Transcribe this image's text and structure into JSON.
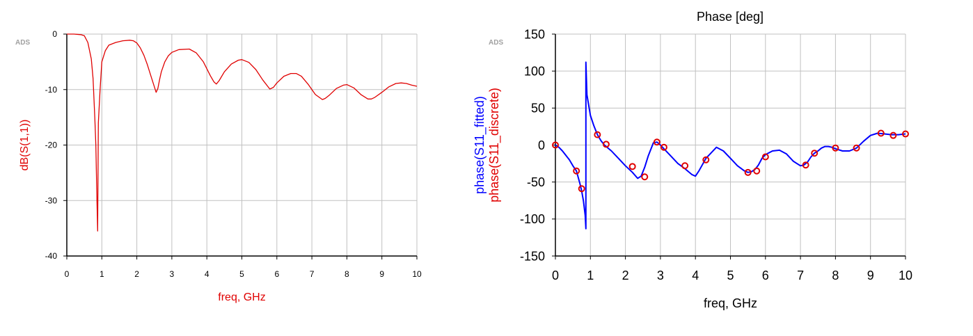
{
  "chart_data": [
    {
      "type": "line",
      "title": "",
      "watermark": "ADS",
      "xlabel": "freq, GHz",
      "ylabel": "dB(S(1,1))",
      "xlim": [
        0,
        10
      ],
      "ylim": [
        -40,
        0
      ],
      "xticks": [
        "0",
        "1",
        "2",
        "3",
        "4",
        "5",
        "6",
        "7",
        "8",
        "9",
        "10"
      ],
      "yticks": [
        "0",
        "-10",
        "-20",
        "-30",
        "-40"
      ],
      "grid": true,
      "label_color": "#e00000",
      "series": [
        {
          "color": "#e00000",
          "x": [
            0,
            0.2,
            0.4,
            0.5,
            0.6,
            0.7,
            0.75,
            0.8,
            0.83,
            0.86,
            0.88,
            0.9,
            0.95,
            1.0,
            1.1,
            1.2,
            1.4,
            1.6,
            1.8,
            1.9,
            2.0,
            2.1,
            2.2,
            2.3,
            2.4,
            2.5,
            2.55,
            2.6,
            2.65,
            2.7,
            2.8,
            2.9,
            3.0,
            3.2,
            3.5,
            3.7,
            3.9,
            4.1,
            4.2,
            4.27,
            4.35,
            4.5,
            4.7,
            4.9,
            5.0,
            5.2,
            5.4,
            5.6,
            5.8,
            5.9,
            6.0,
            6.2,
            6.4,
            6.55,
            6.7,
            6.9,
            7.1,
            7.3,
            7.38,
            7.5,
            7.7,
            7.9,
            8.0,
            8.2,
            8.4,
            8.6,
            8.7,
            8.8,
            9.0,
            9.2,
            9.4,
            9.55,
            9.7,
            9.85,
            10.0
          ],
          "y": [
            0,
            0,
            -0.1,
            -0.3,
            -1.5,
            -4.5,
            -8,
            -15,
            -20,
            -30,
            -35.5,
            -16,
            -10,
            -5,
            -3,
            -2,
            -1.5,
            -1.2,
            -1.1,
            -1.2,
            -1.6,
            -2.5,
            -3.8,
            -5.5,
            -7.5,
            -9.5,
            -10.5,
            -9.8,
            -8.2,
            -6.8,
            -5,
            -3.9,
            -3.3,
            -2.8,
            -2.7,
            -3.4,
            -5,
            -7.5,
            -8.6,
            -9,
            -8.4,
            -6.8,
            -5.4,
            -4.7,
            -4.6,
            -5.1,
            -6.4,
            -8.3,
            -9.9,
            -9.6,
            -8.8,
            -7.6,
            -7.1,
            -7.1,
            -7.6,
            -9.1,
            -10.9,
            -11.8,
            -11.6,
            -11,
            -9.8,
            -9.2,
            -9.1,
            -9.7,
            -10.9,
            -11.7,
            -11.7,
            -11.4,
            -10.5,
            -9.5,
            -8.9,
            -8.8,
            -8.9,
            -9.2,
            -9.4
          ]
        }
      ]
    },
    {
      "type": "line",
      "title": "Phase [deg]",
      "watermark": "ADS",
      "xlabel": "freq, GHz",
      "ylabel_lines": [
        {
          "text": "phase(S11_fitted)",
          "color": "#0000ff"
        },
        {
          "text": "phase(S11_discrete)",
          "color": "#e00000"
        }
      ],
      "xlim": [
        0,
        10
      ],
      "ylim": [
        -150,
        150
      ],
      "xticks": [
        "0",
        "1",
        "2",
        "3",
        "4",
        "5",
        "6",
        "7",
        "8",
        "9",
        "10"
      ],
      "yticks": [
        "150",
        "100",
        "50",
        "0",
        "-50",
        "-100",
        "-150"
      ],
      "grid": true,
      "series": [
        {
          "name": "phase(S11_fitted)",
          "color": "#0000ff",
          "x": [
            0,
            0.1,
            0.2,
            0.3,
            0.4,
            0.5,
            0.6,
            0.7,
            0.75,
            0.8,
            0.85,
            0.87,
            0.87,
            0.9,
            1.0,
            1.1,
            1.2,
            1.3,
            1.4,
            1.6,
            1.8,
            2.0,
            2.2,
            2.35,
            2.45,
            2.55,
            2.65,
            2.8,
            2.9,
            3.0,
            3.1,
            3.3,
            3.5,
            3.7,
            3.9,
            4.0,
            4.1,
            4.3,
            4.6,
            4.8,
            5.0,
            5.2,
            5.4,
            5.5,
            5.6,
            5.7,
            5.8,
            5.9,
            6.0,
            6.2,
            6.4,
            6.6,
            6.8,
            7.0,
            7.1,
            7.2,
            7.3,
            7.4,
            7.5,
            7.6,
            7.7,
            7.8,
            7.9,
            8.0,
            8.2,
            8.4,
            8.6,
            8.8,
            9.0,
            9.2,
            9.4,
            9.6,
            9.8,
            10.0
          ],
          "y": [
            0,
            -3,
            -8,
            -14,
            -20,
            -28,
            -35,
            -52,
            -62,
            -75,
            -95,
            -113,
            112,
            68,
            40,
            26,
            14,
            6,
            0,
            -8,
            -18,
            -28,
            -37,
            -45,
            -42,
            -30,
            -15,
            3,
            4,
            0,
            -5,
            -15,
            -25,
            -32,
            -40,
            -42,
            -35,
            -18,
            -3,
            -8,
            -18,
            -28,
            -35,
            -37,
            -36,
            -33,
            -27,
            -18,
            -13,
            -8,
            -7,
            -12,
            -22,
            -28,
            -27,
            -23,
            -16,
            -11,
            -8,
            -4,
            -2,
            -2,
            -3,
            -5,
            -8,
            -8,
            -4,
            5,
            13,
            16,
            15,
            14,
            14,
            15
          ]
        },
        {
          "name": "phase(S11_discrete)",
          "color": "#e00000",
          "x": [
            0,
            0.6,
            0.75,
            1.2,
            1.45,
            2.2,
            2.55,
            2.9,
            3.1,
            3.7,
            4.3,
            5.5,
            5.75,
            6.0,
            7.15,
            7.4,
            8.0,
            8.6,
            9.3,
            9.65,
            10.0
          ],
          "y": [
            0,
            -35,
            -59,
            14,
            1,
            -29,
            -43,
            4,
            -3,
            -28,
            -20,
            -37,
            -35,
            -16,
            -27,
            -11,
            -4,
            -4,
            16,
            13,
            15
          ]
        }
      ]
    }
  ]
}
